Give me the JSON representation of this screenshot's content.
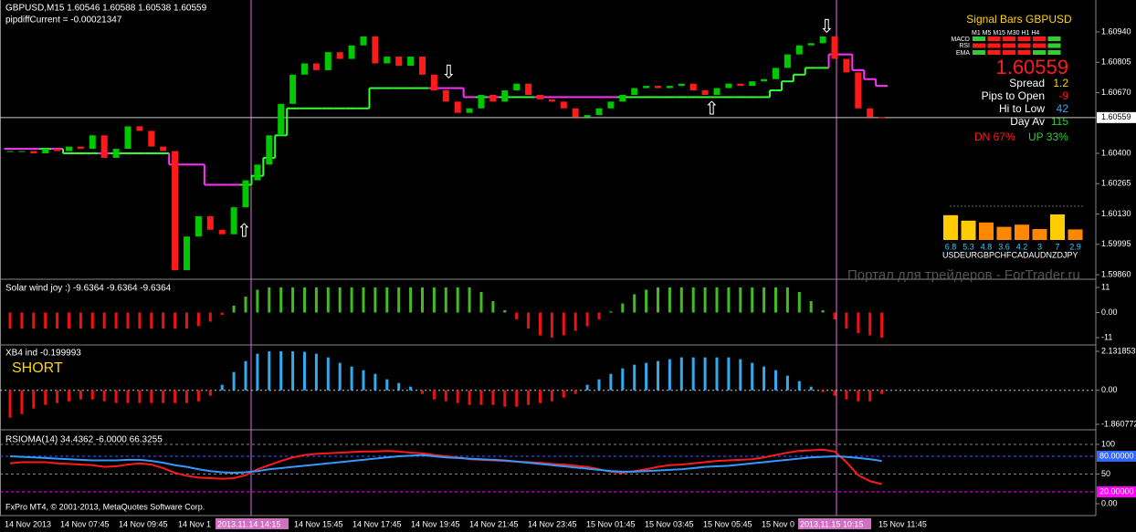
{
  "header": {
    "symbol": "GBPUSD,M15  1.60546 1.60588 1.60538 1.60559",
    "pipdiff": "pipdiffCurrent = -0.00021347"
  },
  "chart_data": [
    {
      "type": "candlestick",
      "colors": {
        "up": "#00c800",
        "down": "#ff1a1a",
        "trend_up": "#33ff33",
        "trend_down": "#ff33ff"
      },
      "ylim": [
        1.59844,
        1.61082
      ],
      "yticks": [
        {
          "value": 1.6094,
          "label": "1.60940"
        },
        {
          "value": 1.60805,
          "label": "1.60805"
        },
        {
          "value": 1.6067,
          "label": "1.60670"
        },
        {
          "value": 1.604,
          "label": "1.60400"
        },
        {
          "value": 1.60265,
          "label": "1.60265"
        },
        {
          "value": 1.6013,
          "label": "1.60130"
        },
        {
          "value": 1.59995,
          "label": "1.59995"
        },
        {
          "value": 1.5986,
          "label": "1.59860"
        }
      ],
      "current": 1.60559,
      "values": [
        1.6041,
        1.6041,
        1.604,
        1.6042,
        1.6041,
        1.6043,
        1.6042,
        1.6048,
        1.6038,
        1.6042,
        1.6052,
        1.605,
        1.6043,
        1.6041,
        1.5988,
        1.6003,
        1.6012,
        1.6006,
        1.6004,
        1.6016,
        1.6028,
        1.6035,
        1.6048,
        1.6062,
        1.6075,
        1.608,
        1.6077,
        1.6085,
        1.6082,
        1.6088,
        1.6092,
        1.608,
        1.6083,
        1.6079,
        1.6083,
        1.6075,
        1.6068,
        1.6063,
        1.6058,
        1.606,
        1.6066,
        1.6063,
        1.6068,
        1.6071,
        1.6066,
        1.6064,
        1.6063,
        1.606,
        1.6056,
        1.6057,
        1.606,
        1.6063,
        1.6066,
        1.6069,
        1.607,
        1.6069,
        1.607,
        1.6071,
        1.6068,
        1.6066,
        1.6069,
        1.6071,
        1.607,
        1.6072,
        1.6073,
        1.6078,
        1.6084,
        1.6088,
        1.6089,
        1.6092,
        1.6082,
        1.6076,
        1.606,
        1.6056,
        1.60559
      ],
      "trend": [
        1.6042,
        1.6042,
        1.6042,
        1.6042,
        1.6042,
        1.604,
        1.604,
        1.604,
        1.604,
        1.604,
        1.604,
        1.604,
        1.604,
        1.604,
        1.6035,
        1.6035,
        1.6035,
        1.6026,
        1.6026,
        1.6026,
        1.6026,
        1.603,
        1.6038,
        1.6048,
        1.606,
        1.606,
        1.606,
        1.606,
        1.606,
        1.606,
        1.606,
        1.6069,
        1.6069,
        1.6069,
        1.6069,
        1.6069,
        1.6069,
        1.6069,
        1.6069,
        1.6065,
        1.6065,
        1.6065,
        1.6065,
        1.6065,
        1.6065,
        1.6065,
        1.6065,
        1.6065,
        1.6065,
        1.6065,
        1.6065,
        1.6065,
        1.6065,
        1.6065,
        1.6065,
        1.6065,
        1.6065,
        1.6065,
        1.6065,
        1.6065,
        1.6065,
        1.6065,
        1.6065,
        1.6065,
        1.6065,
        1.6068,
        1.6072,
        1.6075,
        1.6078,
        1.6078,
        1.6084,
        1.6084,
        1.6077,
        1.6073,
        1.607
      ]
    },
    {
      "type": "histogram",
      "title": "Solar wind joy :) -9.6364 -9.6364 -9.6364",
      "colors": {
        "positive": "#44bb22",
        "negative": "#ee1111"
      },
      "ylim": [
        -13.8,
        14.2
      ],
      "yticks": [
        11,
        {
          "value": 0,
          "label": "0.00"
        },
        -11
      ],
      "values": [
        -7,
        -7,
        -7,
        -7,
        -7,
        -7,
        -7,
        -7,
        -7,
        -7,
        -7,
        -7,
        -7,
        -7,
        -7,
        -7,
        -6,
        -4,
        -1,
        3,
        7,
        10,
        11,
        11,
        11,
        11,
        11,
        11,
        11,
        11,
        11,
        11,
        11,
        11,
        11,
        11,
        11,
        11,
        11,
        11,
        9,
        5,
        1,
        -3,
        -7,
        -10,
        -11,
        -10,
        -8,
        -6,
        -3,
        0.5,
        4,
        8,
        10,
        11,
        11,
        11,
        11,
        11,
        11,
        11,
        11,
        11,
        11,
        11,
        11,
        9,
        5,
        1,
        -3,
        -7,
        -9,
        -10,
        -11
      ]
    },
    {
      "type": "histogram",
      "title": "XB4 ind -0.199993",
      "signal": "SHORT",
      "colors": {
        "positive": "#33aaee",
        "negative": "#ee1111"
      },
      "ylim": [
        -2.11,
        2.43
      ],
      "yticks": [
        2.131853,
        {
          "value": 0,
          "label": "0.00"
        },
        -1.860772
      ],
      "values": [
        -1.5,
        -1.3,
        -1,
        -0.8,
        -0.7,
        -0.6,
        -0.5,
        -0.5,
        -0.6,
        -0.7,
        -0.7,
        -0.7,
        -0.7,
        -0.7,
        -0.7,
        -0.7,
        -0.6,
        -0.3,
        0.3,
        1,
        1.6,
        2,
        2.13,
        2.13,
        2.13,
        2.1,
        2,
        1.8,
        1.5,
        1.3,
        1.1,
        0.9,
        0.6,
        0.4,
        0.2,
        -0.2,
        -0.5,
        -0.6,
        -0.7,
        -0.8,
        -0.8,
        -0.8,
        -0.9,
        -0.9,
        -0.8,
        -0.7,
        -0.6,
        -0.4,
        -0.2,
        0.3,
        0.6,
        0.9,
        1.2,
        1.4,
        1.5,
        1.6,
        1.7,
        1.8,
        1.8,
        1.8,
        1.8,
        1.8,
        1.7,
        1.5,
        1.3,
        1.1,
        0.8,
        0.5,
        0.2,
        -0.1,
        -0.3,
        -0.5,
        -0.6,
        -0.6,
        -0.2
      ]
    },
    {
      "type": "line",
      "title": "RSIOMA(14) 34.4362 -6.0000 66.3255",
      "ylim": [
        -20,
        123
      ],
      "yticks": [
        100,
        50,
        {
          "value": 0,
          "label": "0.00"
        }
      ],
      "levels": [
        {
          "value": 80,
          "label": "80.00000",
          "color": "#3366ff"
        },
        {
          "value": 20,
          "label": "20.00000",
          "color": "#ff00ff"
        }
      ],
      "series": [
        {
          "color": "#ff1a1a",
          "values": [
            68,
            70,
            70,
            70,
            68,
            67,
            66,
            65,
            62,
            63,
            66,
            68,
            66,
            60,
            52,
            47,
            44,
            43,
            42,
            43,
            48,
            58,
            65,
            72,
            78,
            82,
            84,
            85,
            86,
            87,
            88,
            88,
            89,
            88,
            86,
            85,
            82,
            80,
            78,
            75,
            74,
            73,
            72,
            71,
            70,
            69,
            67,
            66,
            64,
            62,
            58,
            54,
            52,
            55,
            58,
            62,
            65,
            66,
            68,
            70,
            72,
            73,
            74,
            75,
            78,
            82,
            86,
            89,
            90,
            91,
            88,
            70,
            48,
            38,
            33
          ]
        },
        {
          "color": "#3399ff",
          "values": [
            80,
            79,
            78,
            77,
            76,
            75,
            74,
            73,
            73,
            73,
            74,
            74,
            72,
            69,
            65,
            62,
            58,
            55,
            53,
            52,
            53,
            55,
            58,
            60,
            62,
            64,
            66,
            68,
            70,
            72,
            74,
            76,
            78,
            80,
            81,
            82,
            80,
            78,
            77,
            76,
            75,
            74,
            73,
            71,
            69,
            67,
            65,
            63,
            61,
            59,
            57,
            55,
            54,
            54,
            55,
            56,
            57,
            58,
            60,
            62,
            63,
            64,
            66,
            68,
            70,
            72,
            74,
            76,
            78,
            79,
            80,
            79,
            77,
            75,
            72
          ]
        }
      ]
    }
  ],
  "signal_panel": {
    "title": "Signal Bars GBPUSD",
    "timeframes": "M1  M5  M15 M30 H1  H4",
    "rows": [
      "MACD",
      "RSI",
      "EMA"
    ],
    "price": "1.60559",
    "stats": [
      {
        "label": "Spread",
        "value": "1.2"
      },
      {
        "label": "Pips to Open",
        "value": "-9"
      },
      {
        "label": "Hi to Low",
        "value": "42"
      },
      {
        "label": "Day Av",
        "value": "115"
      }
    ],
    "dn": "DN 67%",
    "up": "UP 33%"
  },
  "currency_strength": {
    "values": [
      6.8,
      5.3,
      4.8,
      3.6,
      4.2,
      3.0,
      7.0,
      2.9
    ],
    "labels": "USDEURGBPCHFCADAUDNZDJPY"
  },
  "time_axis": [
    "14 Nov 2013",
    "14 Nov 07:45",
    "14 Nov 09:45",
    "14 Nov 1",
    "2013.11.14 14:15",
    "14 Nov 15:45",
    "14 Nov 17:45",
    "14 Nov 19:45",
    "14 Nov 21:45",
    "14 Nov 23:45",
    "15 Nov 01:45",
    "15 Nov 03:45",
    "15 Nov 05:45",
    "15 Nov 0",
    "2013.11.15 10:15",
    "15 Nov 11:45"
  ],
  "footer": "FxPro MT4, © 2001-2013, MetaQuotes Software Corp.",
  "watermark": "Портал для трейдеров - ForTrader.ru"
}
